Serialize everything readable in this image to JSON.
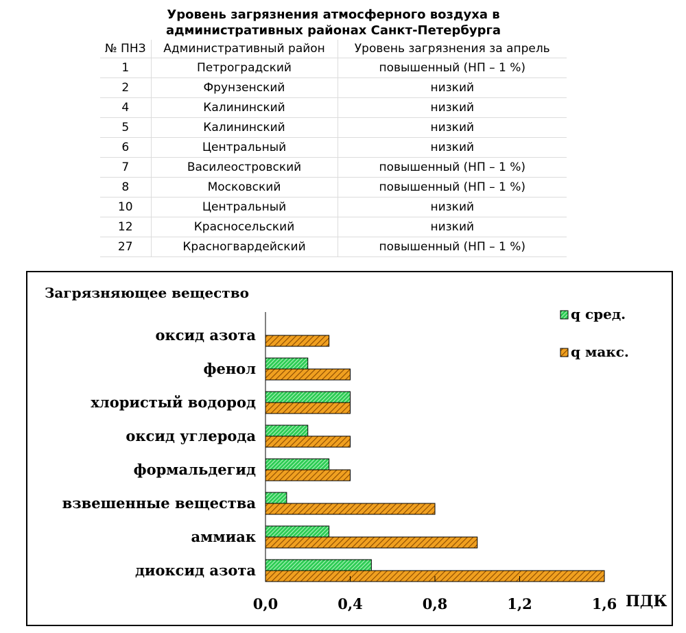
{
  "table": {
    "title_line1": "Уровень загрязнения атмосферного воздуха в",
    "title_line2": "административных районах Санкт-Петербурга",
    "headers": [
      "№ ПНЗ",
      "Административный район",
      "Уровень загрязнения за апрель"
    ],
    "rows": [
      [
        "1",
        "Петроградский",
        "повышенный (НП – 1 %)"
      ],
      [
        "2",
        "Фрунзенский",
        "низкий"
      ],
      [
        "4",
        "Калининский",
        "низкий"
      ],
      [
        "5",
        "Калининский",
        "низкий"
      ],
      [
        "6",
        "Центральный",
        "низкий"
      ],
      [
        "7",
        "Василеостровский",
        "повышенный (НП – 1 %)"
      ],
      [
        "8",
        "Московский",
        "повышенный (НП – 1 %)"
      ],
      [
        "10",
        "Центральный",
        "низкий"
      ],
      [
        "12",
        "Красносельский",
        "низкий"
      ],
      [
        "27",
        "Красногвардейский",
        "повышенный (НП – 1 %)"
      ]
    ]
  },
  "chart_data": {
    "type": "bar",
    "orientation": "horizontal",
    "ylabel": "Загрязняющее вещество",
    "xlabel": "ПДК",
    "categories": [
      "оксид азота",
      "фенол",
      "хлористый водород",
      "оксид углерода",
      "формальдегид",
      "взвешенные вещества",
      "аммиак",
      "диоксид азота"
    ],
    "series": [
      {
        "name": "q сред.",
        "values": [
          0,
          0.2,
          0.4,
          0.2,
          0.3,
          0.1,
          0.3,
          0.5
        ],
        "color": "#2ecc55",
        "pattern": "hatch-green"
      },
      {
        "name": "q  макс.",
        "values": [
          0.3,
          0.4,
          0.4,
          0.4,
          0.4,
          0.8,
          1.0,
          1.6
        ],
        "color": "#f0a020",
        "pattern": "hatch-orange"
      }
    ],
    "xticks": [
      "0,0",
      "0,4",
      "0,8",
      "1,2",
      "1,6"
    ],
    "xlim": [
      0,
      1.6
    ],
    "legend": "top-right",
    "grid": false
  }
}
